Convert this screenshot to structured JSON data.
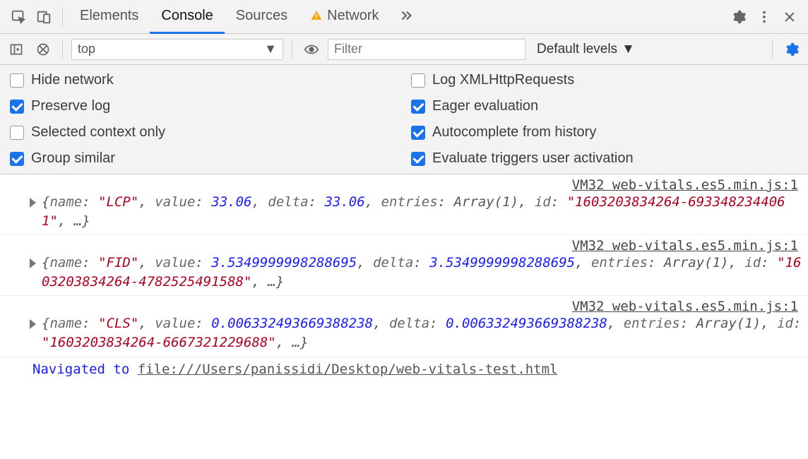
{
  "colors": {
    "toolbar_bg": "#f3f3f3",
    "border": "#cccccc",
    "tab_active": "#1a73e8",
    "checkbox_checked": "#1a73e8",
    "string": "#b00020",
    "number": "#1a1aff",
    "key": "#666666",
    "link": "#1a1aff",
    "gear_blue": "#1a73e8",
    "warn": "#f2a60d"
  },
  "tabs": {
    "elements": "Elements",
    "console": "Console",
    "sources": "Sources",
    "network": "Network"
  },
  "subbar": {
    "context": "top",
    "filter_placeholder": "Filter",
    "levels": "Default levels"
  },
  "settings": {
    "hide_network": {
      "label": "Hide network",
      "checked": false
    },
    "log_xhr": {
      "label": "Log XMLHttpRequests",
      "checked": false
    },
    "preserve_log": {
      "label": "Preserve log",
      "checked": true
    },
    "eager_eval": {
      "label": "Eager evaluation",
      "checked": true
    },
    "selected_ctx": {
      "label": "Selected context only",
      "checked": false
    },
    "autocomplete": {
      "label": "Autocomplete from history",
      "checked": true
    },
    "group_similar": {
      "label": "Group similar",
      "checked": true
    },
    "eval_triggers": {
      "label": "Evaluate triggers user activation",
      "checked": true
    }
  },
  "source_link": "VM32 web-vitals.es5.min.js:1",
  "logs": [
    {
      "name": "LCP",
      "value": "33.06",
      "delta": "33.06",
      "entries": "Array(1)",
      "id": "1603203834264-6933482344061"
    },
    {
      "name": "FID",
      "value": "3.5349999998288695",
      "delta": "3.5349999998288695",
      "entries": "Array(1)",
      "id": "1603203834264-4782525491588"
    },
    {
      "name": "CLS",
      "value": "0.006332493669388238",
      "delta": "0.006332493669388238",
      "entries": "Array(1)",
      "id": "1603203834264-6667321229688"
    }
  ],
  "nav": {
    "prefix": "Navigated to ",
    "url": "file:///Users/panissidi/Desktop/web-vitals-test.html"
  }
}
